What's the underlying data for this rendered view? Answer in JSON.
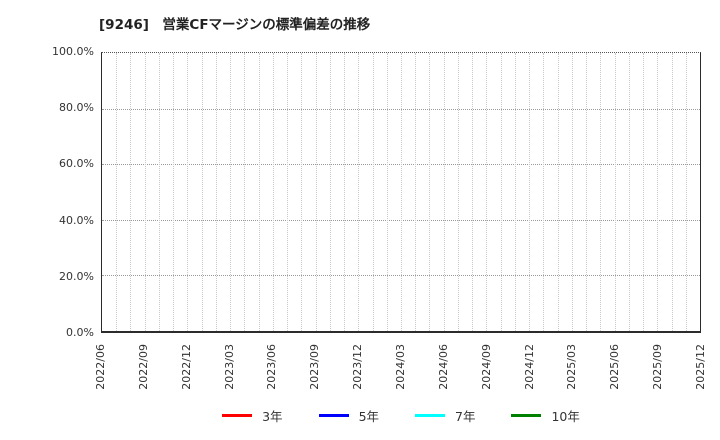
{
  "chart_data": {
    "type": "line",
    "title": "[9246]　営業CFマージンの標準偏差の推移",
    "xlabel": "",
    "ylabel": "",
    "y_tick_labels": [
      "0.0%",
      "20.0%",
      "40.0%",
      "60.0%",
      "80.0%",
      "100.0%"
    ],
    "ylim": [
      0,
      100
    ],
    "x_tick_labels": [
      "2022/06",
      "2022/09",
      "2022/12",
      "2023/03",
      "2023/06",
      "2023/09",
      "2023/12",
      "2024/03",
      "2024/06",
      "2024/09",
      "2024/12",
      "2025/03",
      "2025/06",
      "2025/09",
      "2025/12"
    ],
    "months_per_tick": 3,
    "grid": true,
    "legend_position": "bottom",
    "series": [
      {
        "name": "3年",
        "color": "#ff0000",
        "values": []
      },
      {
        "name": "5年",
        "color": "#0000ff",
        "values": []
      },
      {
        "name": "7年",
        "color": "#00ffff",
        "values": []
      },
      {
        "name": "10年",
        "color": "#008000",
        "values": []
      }
    ]
  }
}
